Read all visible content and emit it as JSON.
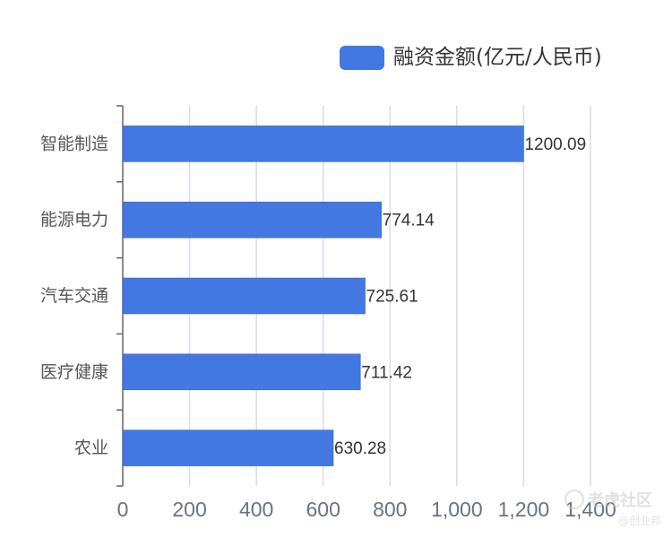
{
  "legend": {
    "label": "融资金额(亿元/人民币)"
  },
  "colors": {
    "bar": "#4378e2",
    "grid": "#d6dde8",
    "axis": "#666666",
    "label": "#333333",
    "tick": "#6a7280"
  },
  "chart_data": {
    "type": "bar",
    "orientation": "horizontal",
    "categories": [
      "智能制造",
      "能源电力",
      "汽车交通",
      "医疗健康",
      "农业"
    ],
    "series": [
      {
        "name": "融资金额(亿元/人民币)",
        "values": [
          1200.09,
          774.14,
          725.61,
          711.42,
          630.28
        ],
        "value_labels": [
          "1200.09",
          "774.14",
          "725.61",
          "711.42",
          "630.28"
        ]
      }
    ],
    "xlim": [
      0,
      1400
    ],
    "x_ticks": [
      0,
      200,
      400,
      600,
      800,
      1000,
      1200,
      1400
    ],
    "x_tick_labels": [
      "0",
      "200",
      "400",
      "600",
      "800",
      "1,000",
      "1,200",
      "1,400"
    ],
    "grid": "vertical",
    "legend_position": "top-right"
  },
  "watermark": {
    "main": "老虎社区",
    "sub": "@创业邦",
    "icon": "tiger-community-logo-icon"
  }
}
